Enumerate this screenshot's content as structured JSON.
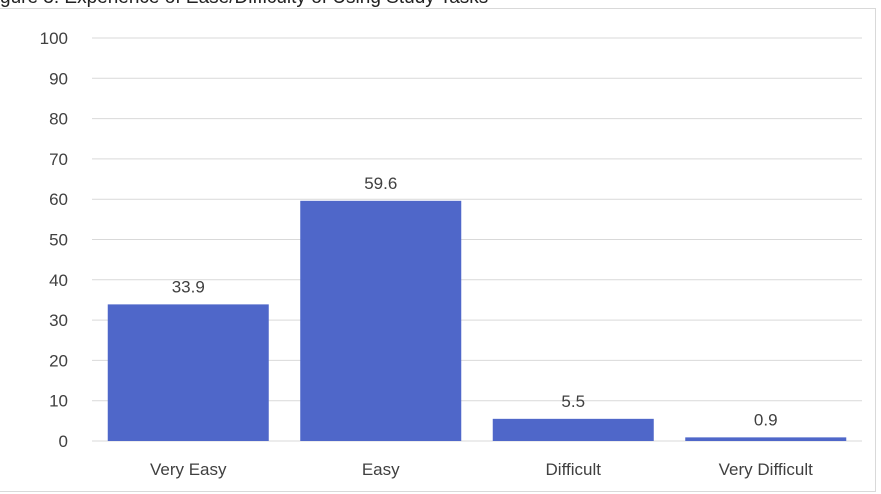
{
  "heading_fragment": "gure 3. Experience of Ease/Difficulty of Using Study Tasks",
  "chart_data": {
    "type": "bar",
    "title": "",
    "xlabel": "",
    "ylabel": "",
    "categories": [
      "Very Easy",
      "Easy",
      "Difficult",
      "Very Difficult"
    ],
    "values": [
      33.9,
      59.6,
      5.5,
      0.9
    ],
    "value_labels": [
      "33.9",
      "59.6",
      "5.5",
      "0.9"
    ],
    "ylim": [
      0,
      100
    ],
    "yticks": [
      "0",
      "10",
      "20",
      "30",
      "40",
      "50",
      "60",
      "70",
      "80",
      "90",
      "100"
    ],
    "grid": true,
    "legend": "none",
    "bar_color": "#4f67c9",
    "grid_color": "#d9d9d9"
  }
}
